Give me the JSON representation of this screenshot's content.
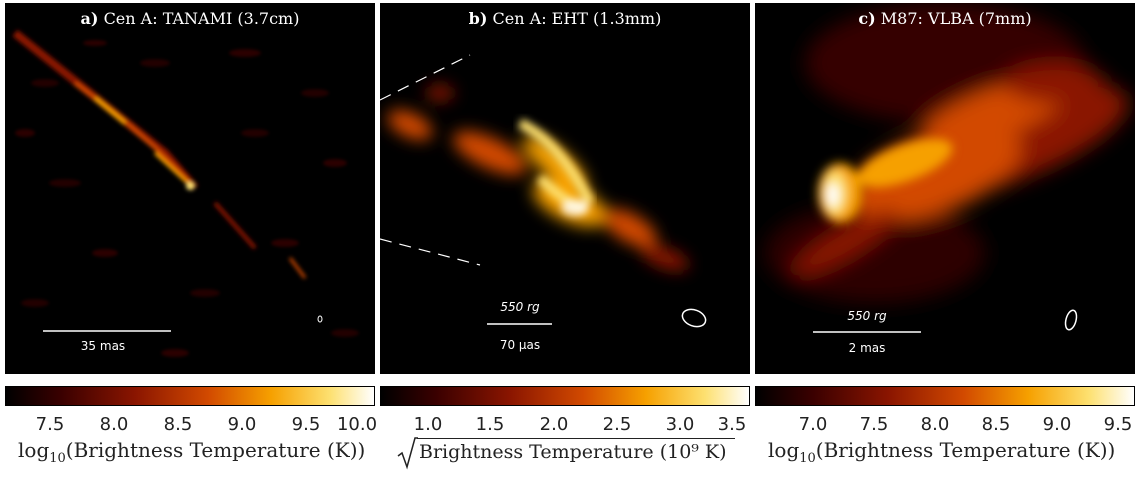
{
  "panels": [
    {
      "id": "a",
      "title_prefix": "a)",
      "title": "Cen A: TANAMI (3.7cm)",
      "scale_top": "",
      "scale_bottom": "35 mas"
    },
    {
      "id": "b",
      "title_prefix": "b)",
      "title": "Cen A: EHT (1.3mm)",
      "scale_top": "550 rg",
      "scale_bottom": "70 μas"
    },
    {
      "id": "c",
      "title_prefix": "c)",
      "title": "M87: VLBA (7mm)",
      "scale_top": "550 rg",
      "scale_bottom": "2 mas"
    }
  ],
  "colorbars": [
    {
      "ticks": [
        "7.5",
        "8.0",
        "8.5",
        "9.0",
        "9.5",
        "10.0"
      ],
      "label_prefix": "log",
      "label_sub": "10",
      "label_rest": "(Brightness Temperature (K))"
    },
    {
      "ticks": [
        "1.0",
        "1.5",
        "2.0",
        "2.5",
        "3.0",
        "3.5"
      ],
      "label": "Brightness Temperature (10⁹ K)"
    },
    {
      "ticks": [
        "7.0",
        "7.5",
        "8.0",
        "8.5",
        "9.0",
        "9.5"
      ],
      "label_prefix": "log",
      "label_sub": "10",
      "label_rest": "(Brightness Temperature (K))"
    }
  ],
  "colormap": [
    "#000000",
    "#3a0000",
    "#8a1500",
    "#d24a00",
    "#f6a000",
    "#fde070",
    "#ffffff"
  ]
}
